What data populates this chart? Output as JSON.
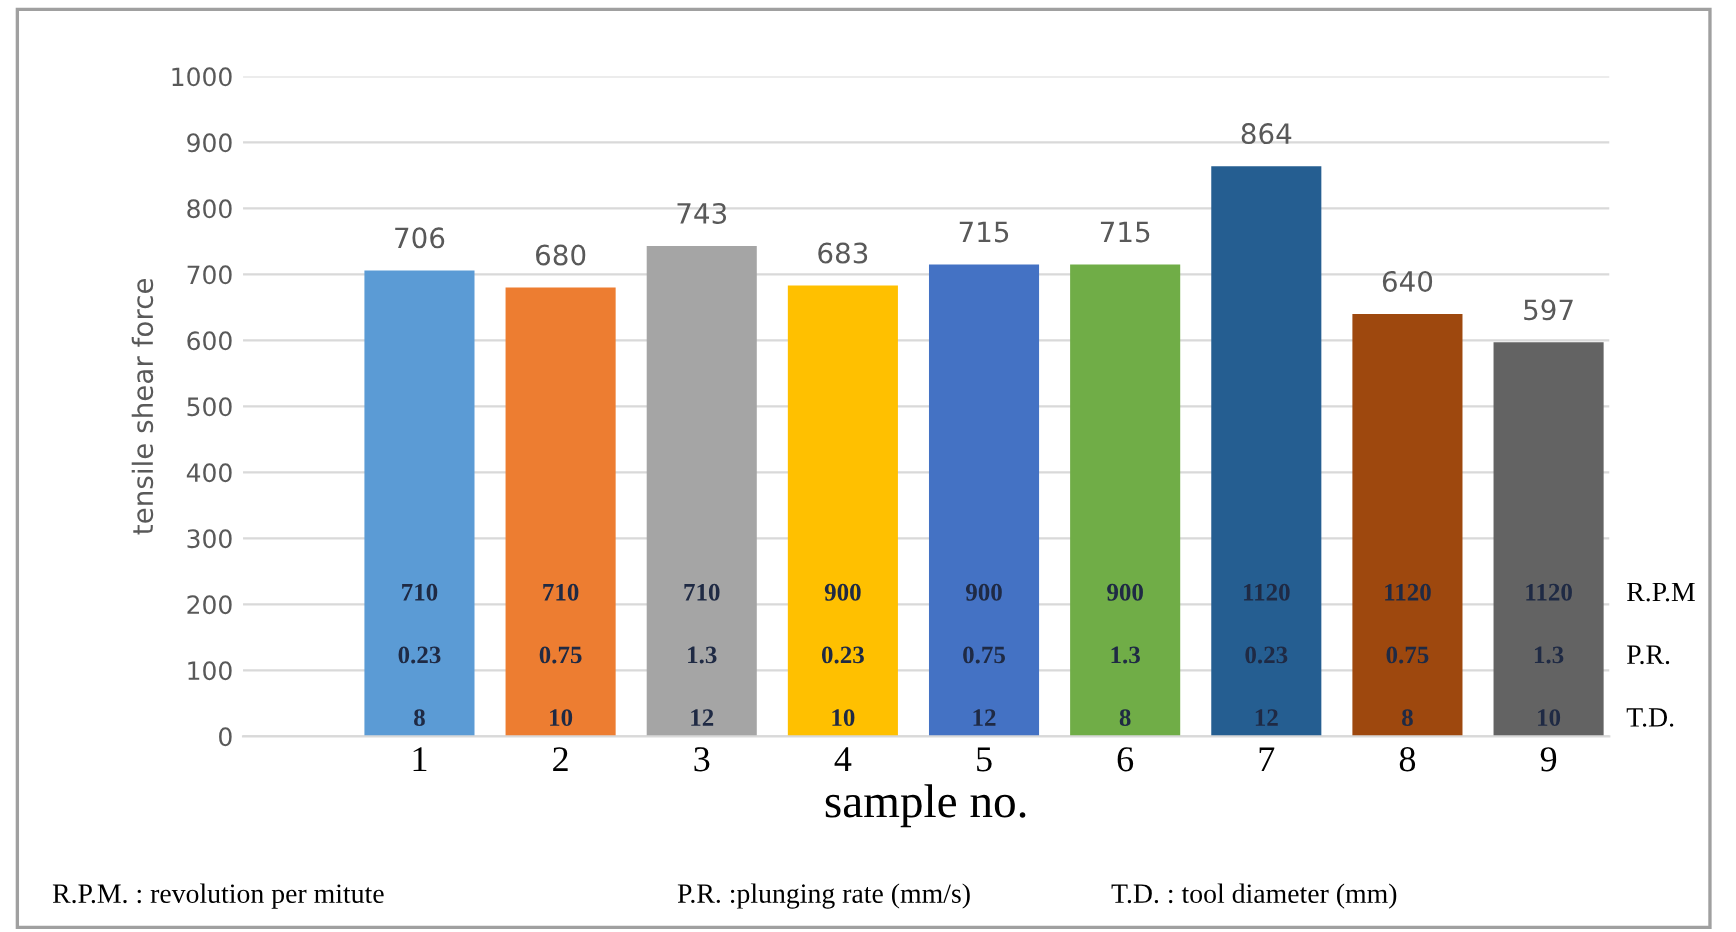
{
  "chart_data": {
    "type": "bar",
    "ylabel": "tensile shear force",
    "xlabel": "sample no.",
    "categories": [
      "1",
      "2",
      "3",
      "4",
      "5",
      "6",
      "7",
      "8",
      "9"
    ],
    "values": [
      706,
      680,
      743,
      683,
      715,
      715,
      864,
      640,
      597
    ],
    "colors": [
      "#5b9bd5",
      "#ed7d31",
      "#a5a5a5",
      "#ffc000",
      "#4472c4",
      "#70ad47",
      "#255e91",
      "#9e480e",
      "#636363"
    ],
    "data_labels": true,
    "ylim": [
      0,
      1000
    ],
    "yticks": [
      0,
      100,
      200,
      300,
      400,
      500,
      600,
      700,
      800,
      900,
      1000
    ],
    "grid": "y",
    "legend": false,
    "annotations": [
      "710",
      "710",
      "710",
      "900",
      "900",
      "900",
      "1120",
      "1120",
      "1120",
      "0.23",
      "0.75",
      "1.3",
      "0.23",
      "0.75",
      "1.3",
      "0.23",
      "0.75",
      "1.3",
      "8",
      "10",
      "12",
      "10",
      "12",
      "8",
      "12",
      "8",
      "10",
      "R.P.M",
      "P.R.",
      "T.D.",
      "R.P.M. : revolution per mitute",
      "P.R. :plunging rate (mm/s)",
      "T.D. : tool diameter (mm)"
    ]
  }
}
